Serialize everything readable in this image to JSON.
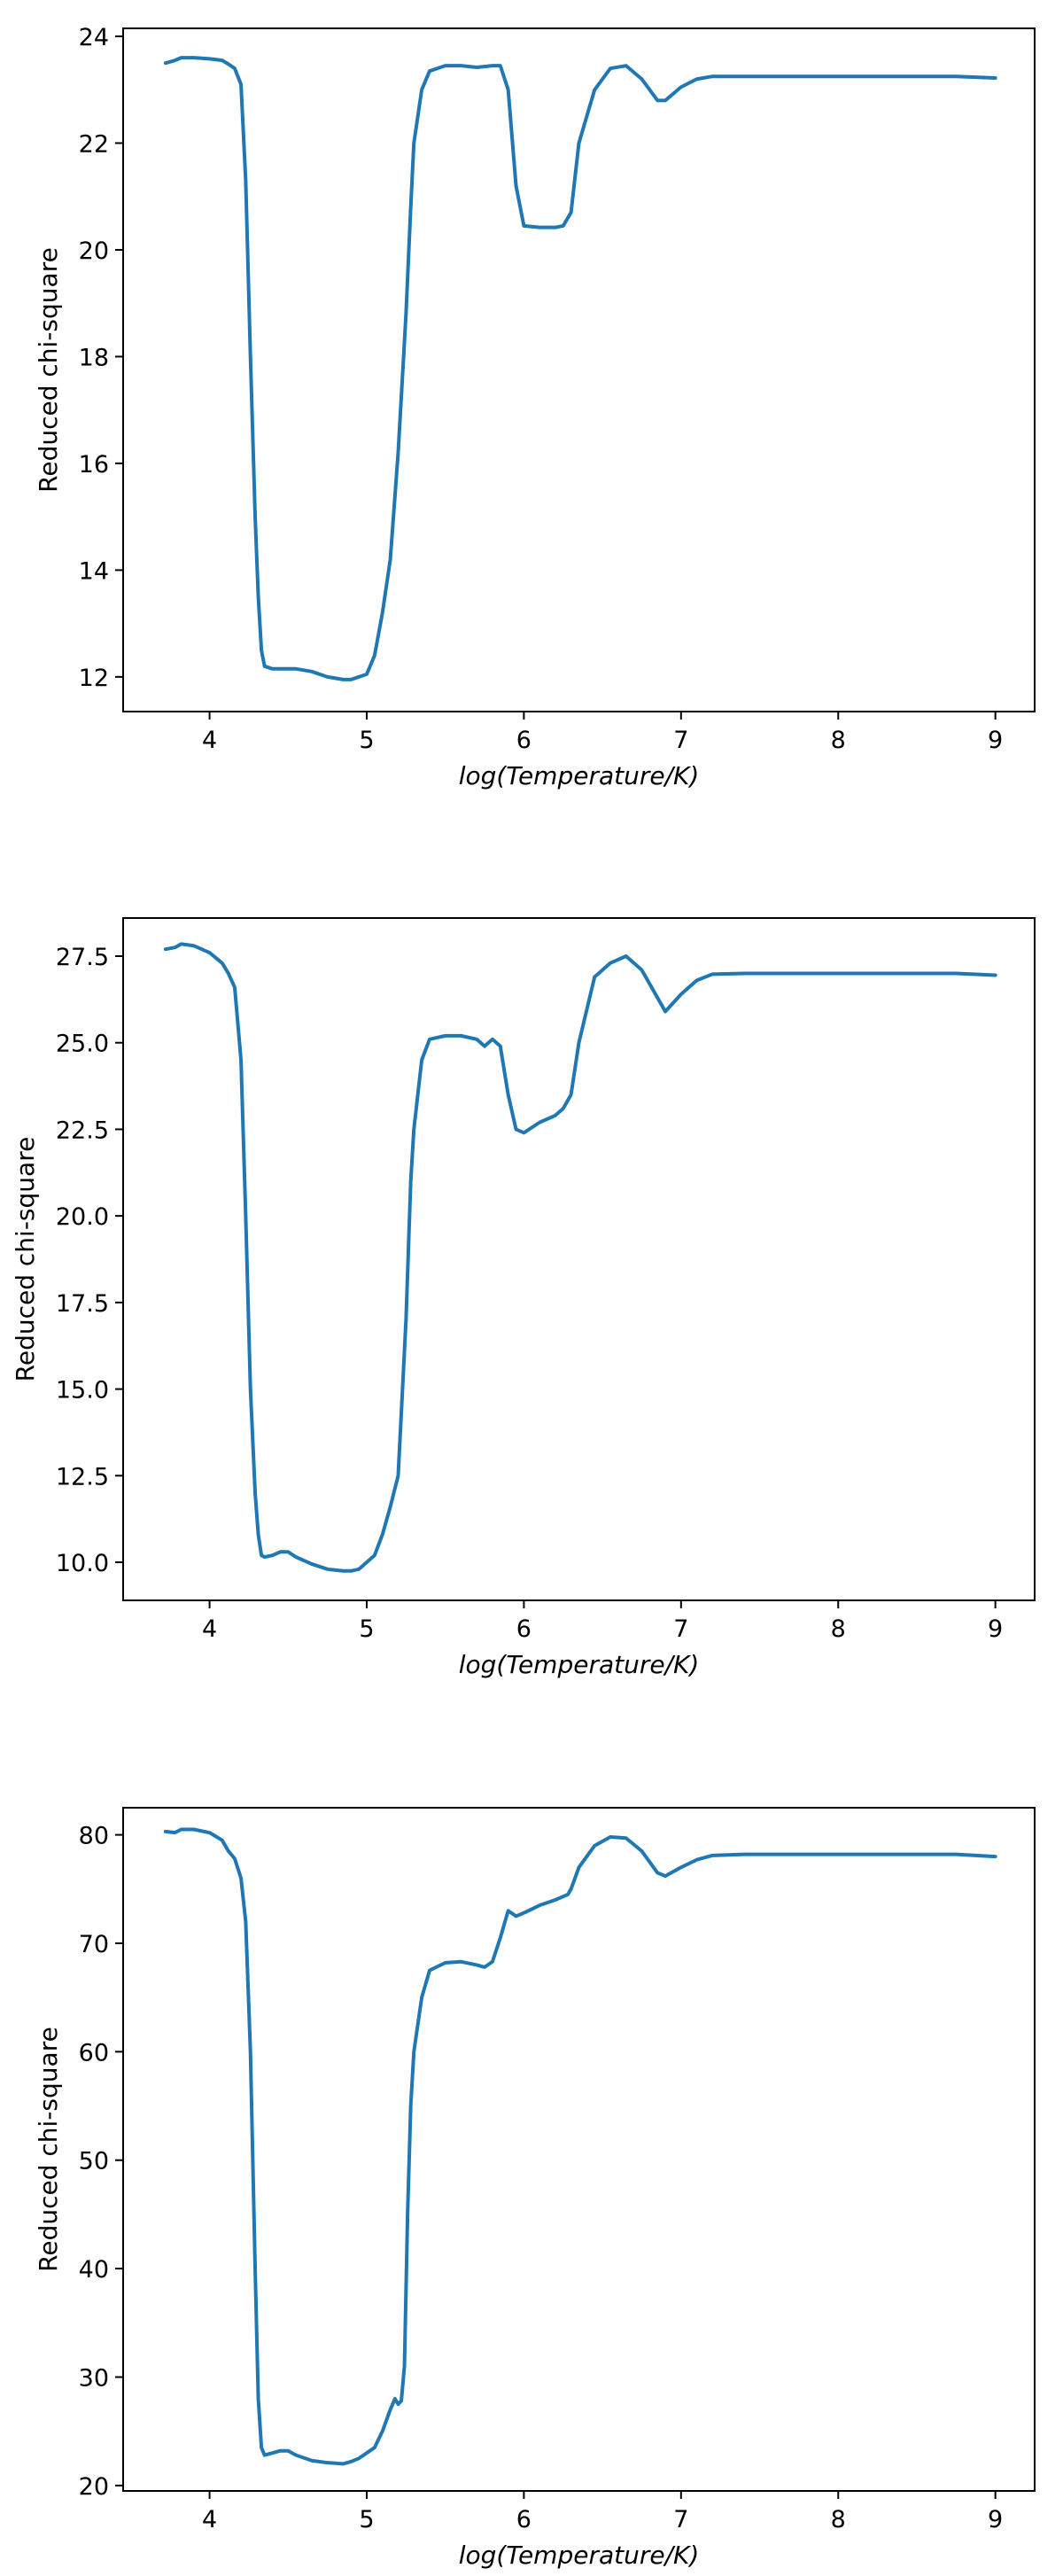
{
  "colors": {
    "line": "#1f77b4",
    "frame": "#000000",
    "background": "#ffffff"
  },
  "chart_data": [
    {
      "type": "line",
      "title": "",
      "xlabel": "log(Temperature/K)",
      "ylabel": "Reduced chi-square",
      "xlim": [
        3.45,
        9.25
      ],
      "ylim": [
        11.35,
        24.15
      ],
      "x_ticks": [
        4,
        5,
        6,
        7,
        8,
        9
      ],
      "y_ticks": [
        12,
        14,
        16,
        18,
        20,
        22,
        24
      ],
      "y_tick_labels": [
        "12",
        "14",
        "16",
        "18",
        "20",
        "22",
        "24"
      ],
      "grid": false,
      "series": [
        {
          "x": [
            3.72,
            3.78,
            3.82,
            3.9,
            4.0,
            4.08,
            4.12,
            4.16,
            4.2,
            4.23,
            4.26,
            4.29,
            4.31,
            4.33,
            4.35,
            4.4,
            4.45,
            4.55,
            4.65,
            4.75,
            4.85,
            4.9,
            4.95,
            5.0,
            5.05,
            5.1,
            5.15,
            5.2,
            5.25,
            5.28,
            5.3,
            5.35,
            5.4,
            5.5,
            5.6,
            5.7,
            5.8,
            5.85,
            5.9,
            5.95,
            6.0,
            6.1,
            6.2,
            6.25,
            6.3,
            6.35,
            6.45,
            6.55,
            6.65,
            6.75,
            6.85,
            6.9,
            7.0,
            7.1,
            7.2,
            7.4,
            8.0,
            8.5,
            8.75,
            9.0
          ],
          "y": [
            23.5,
            23.55,
            23.6,
            23.6,
            23.58,
            23.55,
            23.48,
            23.4,
            23.1,
            21.3,
            18.0,
            15.0,
            13.5,
            12.5,
            12.2,
            12.15,
            12.15,
            12.15,
            12.1,
            12.0,
            11.95,
            11.95,
            12.0,
            12.05,
            12.4,
            13.2,
            14.2,
            16.2,
            18.8,
            20.8,
            22.0,
            23.0,
            23.35,
            23.45,
            23.45,
            23.42,
            23.45,
            23.45,
            23.0,
            21.2,
            20.45,
            20.42,
            20.42,
            20.45,
            20.7,
            22.0,
            23.0,
            23.4,
            23.45,
            23.2,
            22.8,
            22.8,
            23.05,
            23.2,
            23.25,
            23.25,
            23.25,
            23.25,
            23.25,
            23.22
          ]
        }
      ]
    },
    {
      "type": "line",
      "title": "",
      "xlabel": "log(Temperature/K)",
      "ylabel": "Reduced chi-square",
      "xlim": [
        3.45,
        9.25
      ],
      "ylim": [
        8.9,
        28.6
      ],
      "x_ticks": [
        4,
        5,
        6,
        7,
        8,
        9
      ],
      "y_ticks": [
        10.0,
        12.5,
        15.0,
        17.5,
        20.0,
        22.5,
        25.0,
        27.5
      ],
      "y_tick_labels": [
        "10.0",
        "12.5",
        "15.0",
        "17.5",
        "20.0",
        "22.5",
        "25.0",
        "27.5"
      ],
      "grid": false,
      "series": [
        {
          "x": [
            3.72,
            3.78,
            3.82,
            3.9,
            4.0,
            4.08,
            4.12,
            4.16,
            4.2,
            4.23,
            4.26,
            4.29,
            4.31,
            4.33,
            4.35,
            4.4,
            4.45,
            4.5,
            4.55,
            4.65,
            4.75,
            4.85,
            4.9,
            4.95,
            5.0,
            5.05,
            5.1,
            5.15,
            5.2,
            5.25,
            5.28,
            5.3,
            5.35,
            5.4,
            5.5,
            5.6,
            5.7,
            5.75,
            5.8,
            5.85,
            5.9,
            5.95,
            6.0,
            6.1,
            6.2,
            6.25,
            6.3,
            6.35,
            6.45,
            6.55,
            6.65,
            6.75,
            6.85,
            6.9,
            7.0,
            7.1,
            7.2,
            7.4,
            8.0,
            8.5,
            8.75,
            9.0
          ],
          "y": [
            27.7,
            27.75,
            27.85,
            27.8,
            27.6,
            27.3,
            27.0,
            26.6,
            24.5,
            20.0,
            15.0,
            12.0,
            10.8,
            10.2,
            10.15,
            10.2,
            10.3,
            10.3,
            10.15,
            9.95,
            9.8,
            9.75,
            9.75,
            9.8,
            10.0,
            10.2,
            10.8,
            11.6,
            12.5,
            17.0,
            21.0,
            22.5,
            24.5,
            25.1,
            25.2,
            25.2,
            25.1,
            24.9,
            25.1,
            24.9,
            23.5,
            22.5,
            22.4,
            22.7,
            22.9,
            23.1,
            23.5,
            25.0,
            26.9,
            27.3,
            27.5,
            27.1,
            26.3,
            25.9,
            26.4,
            26.8,
            26.98,
            27.0,
            27.0,
            27.0,
            27.0,
            26.95
          ]
        }
      ]
    },
    {
      "type": "line",
      "title": "",
      "xlabel": "log(Temperature/K)",
      "ylabel": "Reduced chi-square",
      "xlim": [
        3.45,
        9.25
      ],
      "ylim": [
        19.5,
        82.5
      ],
      "x_ticks": [
        4,
        5,
        6,
        7,
        8,
        9
      ],
      "y_ticks": [
        20,
        30,
        40,
        50,
        60,
        70,
        80
      ],
      "y_tick_labels": [
        "20",
        "30",
        "40",
        "50",
        "60",
        "70",
        "80"
      ],
      "grid": false,
      "series": [
        {
          "x": [
            3.72,
            3.78,
            3.82,
            3.9,
            4.0,
            4.08,
            4.12,
            4.16,
            4.2,
            4.23,
            4.26,
            4.29,
            4.31,
            4.33,
            4.35,
            4.4,
            4.45,
            4.5,
            4.55,
            4.65,
            4.75,
            4.85,
            4.9,
            4.95,
            5.0,
            5.05,
            5.1,
            5.15,
            5.18,
            5.2,
            5.22,
            5.24,
            5.26,
            5.28,
            5.3,
            5.35,
            5.4,
            5.5,
            5.6,
            5.7,
            5.75,
            5.8,
            5.85,
            5.9,
            5.95,
            6.0,
            6.1,
            6.2,
            6.28,
            6.3,
            6.35,
            6.45,
            6.55,
            6.65,
            6.75,
            6.85,
            6.9,
            7.0,
            7.1,
            7.2,
            7.4,
            8.0,
            8.5,
            8.75,
            9.0
          ],
          "y": [
            80.3,
            80.2,
            80.5,
            80.5,
            80.2,
            79.5,
            78.5,
            77.8,
            76.0,
            72.0,
            60.0,
            40.0,
            28.0,
            23.5,
            22.8,
            23.0,
            23.2,
            23.2,
            22.8,
            22.3,
            22.1,
            22.0,
            22.2,
            22.5,
            23.0,
            23.5,
            25.0,
            27.0,
            28.0,
            27.5,
            27.8,
            31.0,
            45.0,
            55.0,
            60.0,
            65.0,
            67.5,
            68.2,
            68.3,
            68.0,
            67.8,
            68.3,
            70.5,
            73.0,
            72.5,
            72.8,
            73.5,
            74.0,
            74.5,
            75.0,
            77.0,
            79.0,
            79.8,
            79.7,
            78.5,
            76.5,
            76.2,
            77.0,
            77.7,
            78.1,
            78.2,
            78.2,
            78.2,
            78.2,
            78.0
          ]
        }
      ]
    }
  ]
}
